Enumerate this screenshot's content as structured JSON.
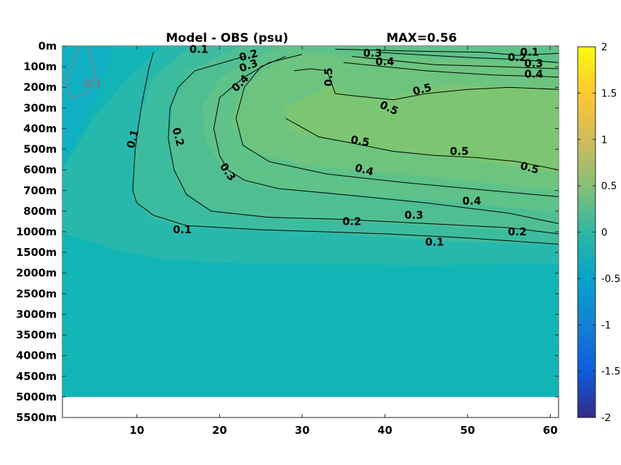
{
  "chart_data": {
    "type": "heatmap",
    "title": "Model - OBS (psu)",
    "max_label": "MAX=0.56",
    "x_ticks": [
      10,
      20,
      30,
      40,
      50,
      60
    ],
    "x_range": [
      1,
      61
    ],
    "depth_ticks": [
      "0m",
      "100m",
      "200m",
      "300m",
      "400m",
      "500m",
      "600m",
      "700m",
      "800m",
      "1000m",
      "1500m",
      "2000m",
      "2500m",
      "3000m",
      "3500m",
      "4000m",
      "4500m",
      "5000m",
      "5500m"
    ],
    "colorbar": {
      "range": [
        -2,
        2
      ],
      "ticks": [
        "2",
        "1.5",
        "1",
        "0.5",
        "0",
        "-0.5",
        "-1",
        "-1.5",
        "-2"
      ],
      "colormap": "parula",
      "colors": [
        "#352a87",
        "#0f5cdd",
        "#1481d6",
        "#06a4ca",
        "#2eb7a4",
        "#87bf77",
        "#d1bb59",
        "#fec832",
        "#f9fb0e"
      ]
    },
    "contour_levels": [
      -0.1,
      0.1,
      0.2,
      0.3,
      0.4,
      0.5
    ],
    "contours": [
      {
        "level": 0.1,
        "label": "0.1",
        "points": [
          [
            12,
            0.3
          ],
          [
            11.5,
            1
          ],
          [
            10.5,
            3
          ],
          [
            9.8,
            5
          ],
          [
            9.5,
            7
          ],
          [
            10,
            7.6
          ],
          [
            12,
            8.2
          ],
          [
            16,
            8.7
          ],
          [
            25,
            8.9
          ],
          [
            40,
            9.1
          ],
          [
            50,
            9.3
          ],
          [
            61,
            9.6
          ]
        ]
      },
      {
        "level": 0.2,
        "label": "0.2",
        "points": [
          [
            23,
            0.5
          ],
          [
            17,
            1.2
          ],
          [
            15,
            2
          ],
          [
            14,
            3
          ],
          [
            13.8,
            4.5
          ],
          [
            14.5,
            6
          ],
          [
            16,
            7.2
          ],
          [
            19,
            8
          ],
          [
            26,
            8.3
          ],
          [
            35,
            8.4
          ],
          [
            45,
            8.6
          ],
          [
            55,
            8.8
          ],
          [
            61,
            9.1
          ]
        ]
      },
      {
        "level": 0.3,
        "label": "0.3",
        "points": [
          [
            30,
            0.4
          ],
          [
            26,
            0.8
          ],
          [
            23,
            1.5
          ],
          [
            20,
            2.5
          ],
          [
            19.3,
            4
          ],
          [
            20,
            5.3
          ],
          [
            21,
            6
          ],
          [
            23,
            6.5
          ],
          [
            27,
            6.9
          ],
          [
            35,
            7.2
          ],
          [
            45,
            7.6
          ],
          [
            55,
            8.1
          ],
          [
            61,
            8.6
          ]
        ]
      },
      {
        "level": 0.4,
        "label": "0.4",
        "points": [
          [
            28,
            0.5
          ],
          [
            25,
            1
          ],
          [
            23,
            2
          ],
          [
            22,
            3.5
          ],
          [
            22.8,
            4.8
          ],
          [
            26,
            5.6
          ],
          [
            33,
            6.2
          ],
          [
            42,
            6.6
          ],
          [
            50,
            6.9
          ],
          [
            61,
            7.3
          ]
        ]
      },
      {
        "level": 0.5,
        "label": "0.5",
        "points": [
          [
            29,
            1.2
          ],
          [
            31,
            1.1
          ],
          [
            33,
            1.2
          ],
          [
            34,
            2.3
          ],
          [
            36,
            2.4
          ],
          [
            41,
            2.6
          ],
          [
            45,
            2.3
          ],
          [
            50,
            2.1
          ],
          [
            55,
            2
          ],
          [
            61,
            2.1
          ]
        ]
      },
      {
        "level": 0.5,
        "label": "0.5",
        "points": [
          [
            28,
            3.5
          ],
          [
            32,
            4.4
          ],
          [
            36,
            4.7
          ],
          [
            41,
            5.1
          ],
          [
            46,
            5.3
          ],
          [
            51,
            5.4
          ],
          [
            56,
            5.6
          ],
          [
            61,
            6.0
          ]
        ]
      },
      {
        "level": 0.1,
        "label": "0.1",
        "points": [
          [
            34,
            0.15
          ],
          [
            44,
            0.25
          ],
          [
            52,
            0.3
          ],
          [
            56,
            0.45
          ],
          [
            61,
            0.35
          ]
        ]
      },
      {
        "level": 0.2,
        "label": "0.2",
        "points": [
          [
            39,
            0.3
          ],
          [
            50,
            0.55
          ],
          [
            56,
            0.65
          ],
          [
            61,
            0.8
          ]
        ]
      },
      {
        "level": 0.3,
        "label": "0.3",
        "points": [
          [
            36,
            0.5
          ],
          [
            46,
            0.9
          ],
          [
            54,
            1.0
          ],
          [
            61,
            1.1
          ]
        ]
      },
      {
        "level": 0.4,
        "label": "0.4",
        "points": [
          [
            35,
            0.8
          ],
          [
            45,
            1.2
          ],
          [
            53,
            1.4
          ],
          [
            61,
            1.5
          ]
        ]
      }
    ],
    "negative_contour": {
      "level": -0.1,
      "label": "-0.1",
      "points": [
        [
          3,
          0.1
        ],
        [
          2.2,
          0.8
        ],
        [
          1.5,
          1.8
        ],
        [
          2,
          2.5
        ],
        [
          4,
          2.3
        ],
        [
          5,
          1.6
        ],
        [
          4.5,
          0.5
        ],
        [
          4,
          0.1
        ]
      ]
    },
    "contour_label_positions": [
      {
        "text": "0.1",
        "x": 9.5,
        "y": 4.5,
        "rot": -75
      },
      {
        "text": "0.2",
        "x": 15,
        "y": 4.4,
        "rot": 75
      },
      {
        "text": "0.3",
        "x": 21,
        "y": 6.1,
        "rot": 55
      },
      {
        "text": "0.4",
        "x": 22.5,
        "y": 1.8,
        "rot": -45
      },
      {
        "text": "0.3",
        "x": 23.5,
        "y": 0.95,
        "rot": -20
      },
      {
        "text": "0.2",
        "x": 23.5,
        "y": 0.45,
        "rot": -15
      },
      {
        "text": "0.1",
        "x": 17.5,
        "y": 0.15,
        "rot": 0
      },
      {
        "text": "0.5",
        "x": 33.2,
        "y": 1.5,
        "rot": -90
      },
      {
        "text": "0.3",
        "x": 38.5,
        "y": 0.35,
        "rot": 0
      },
      {
        "text": "0.4",
        "x": 40,
        "y": 0.75,
        "rot": 0
      },
      {
        "text": "0.5",
        "x": 44.5,
        "y": 2.1,
        "rot": -15
      },
      {
        "text": "0.5",
        "x": 40.5,
        "y": 3.0,
        "rot": 25
      },
      {
        "text": "0.5",
        "x": 37,
        "y": 4.6,
        "rot": 10
      },
      {
        "text": "0.5",
        "x": 49,
        "y": 5.1,
        "rot": 0
      },
      {
        "text": "0.5",
        "x": 57.5,
        "y": 5.9,
        "rot": 15
      },
      {
        "text": "0.4",
        "x": 37.5,
        "y": 6.0,
        "rot": 15
      },
      {
        "text": "0.4",
        "x": 50.5,
        "y": 7.5,
        "rot": 0
      },
      {
        "text": "0.3",
        "x": 43.5,
        "y": 8.2,
        "rot": 0
      },
      {
        "text": "0.2",
        "x": 36,
        "y": 8.5,
        "rot": 0
      },
      {
        "text": "0.2",
        "x": 56,
        "y": 9.0,
        "rot": 0
      },
      {
        "text": "0.1",
        "x": 15.5,
        "y": 8.9,
        "rot": 0
      },
      {
        "text": "0.1",
        "x": 46,
        "y": 9.5,
        "rot": 0
      },
      {
        "text": "0.1",
        "x": 57.5,
        "y": 0.3,
        "rot": 0
      },
      {
        "text": "0.2",
        "x": 56,
        "y": 0.55,
        "rot": 0
      },
      {
        "text": "0.3",
        "x": 58,
        "y": 0.85,
        "rot": 0
      },
      {
        "text": "0.4",
        "x": 58,
        "y": 1.35,
        "rot": 0
      }
    ]
  }
}
